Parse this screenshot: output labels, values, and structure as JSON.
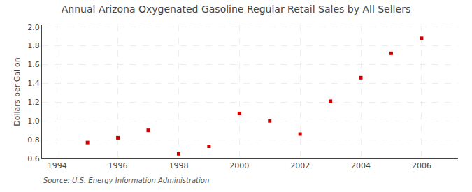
{
  "chart_data": {
    "type": "scatter",
    "title": "Annual Arizona Oxygenated Gasoline Regular Retail Sales by All Sellers",
    "y_label": "Dollars per Gallon",
    "annotations": [
      "Source: U.S. Energy Information Administration"
    ],
    "x": [
      1995,
      1996,
      1997,
      1998,
      1999,
      2000,
      2001,
      2002,
      2003,
      2004,
      2005,
      2006
    ],
    "values": [
      0.77,
      0.82,
      0.9,
      0.65,
      0.73,
      1.08,
      1.0,
      0.86,
      1.21,
      1.46,
      1.72,
      1.88
    ],
    "color": "#cc0000",
    "marker": "square",
    "xlim": [
      1993.5,
      2007.2
    ],
    "ylim": [
      0.6,
      2.02
    ],
    "xticks": [
      1994,
      1996,
      1998,
      2000,
      2002,
      2004,
      2006
    ],
    "yticks": [
      0.6,
      0.8,
      {
        "value": 1,
        "label": "1.0"
      },
      1.2,
      1.4,
      1.6,
      1.8,
      {
        "value": 2,
        "label": "2.0"
      }
    ],
    "grid": true
  }
}
